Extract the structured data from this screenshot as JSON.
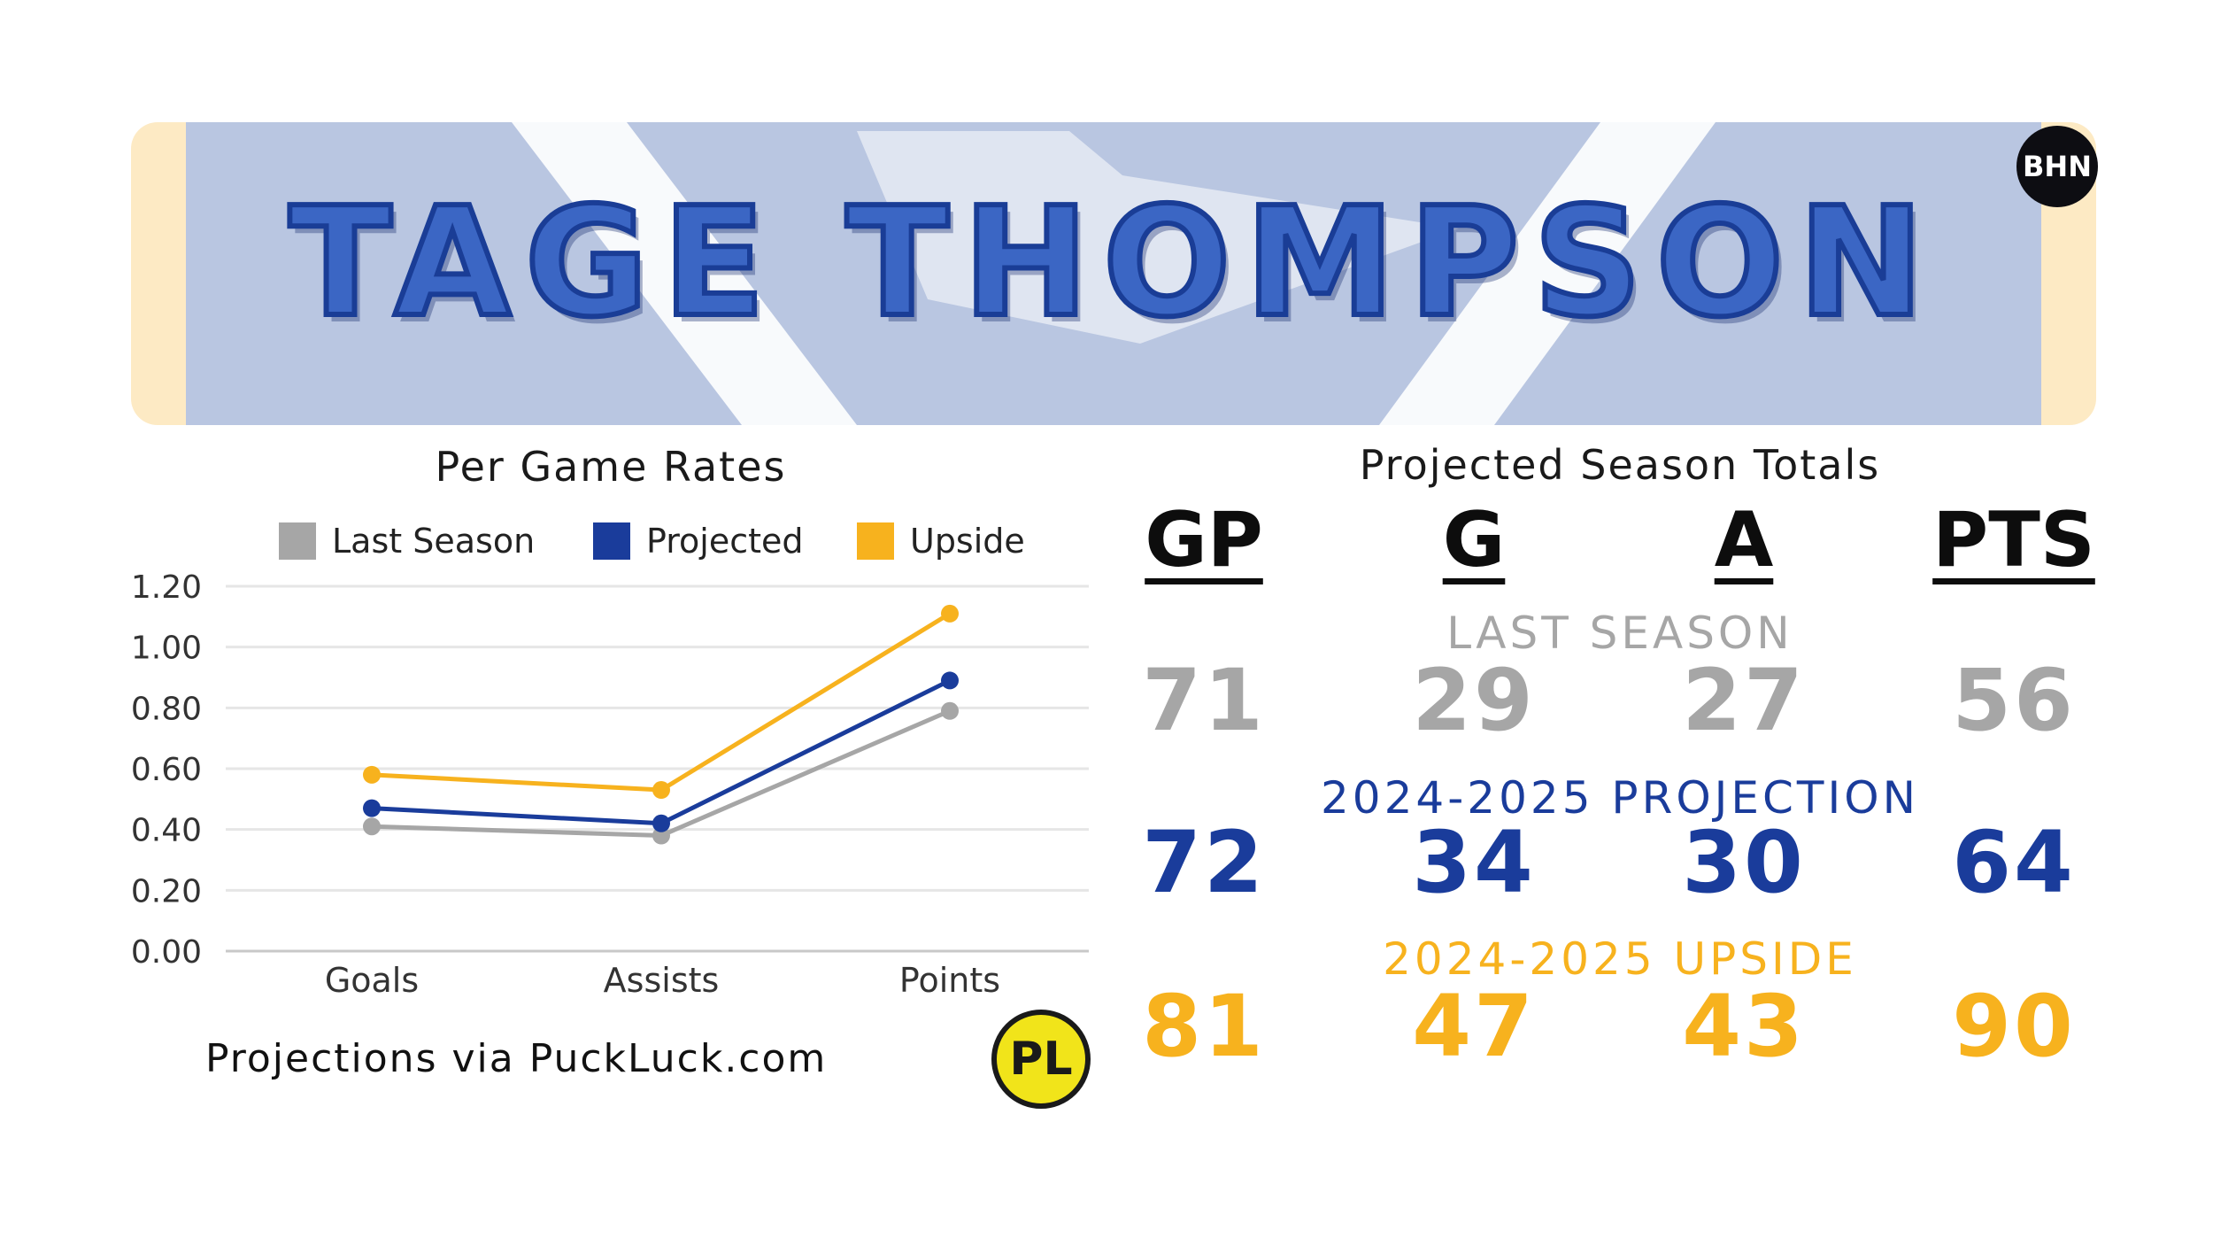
{
  "player": {
    "name": "TAGE THOMPSON"
  },
  "logos": {
    "top_right_text": "BHN",
    "puckluck_mark": "PL"
  },
  "colors": {
    "last_season": "#a6a6a6",
    "projected": "#1a3c9b",
    "upside": "#f7b21e",
    "banner_bg": "#b9c6e1",
    "banner_edge": "#fdeac4"
  },
  "chart_data": {
    "type": "line",
    "title": "Per Game Rates",
    "categories": [
      "Goals",
      "Assists",
      "Points"
    ],
    "series": [
      {
        "name": "Last Season",
        "values": [
          0.41,
          0.38,
          0.79
        ]
      },
      {
        "name": "Projected",
        "values": [
          0.47,
          0.42,
          0.89
        ]
      },
      {
        "name": "Upside",
        "values": [
          0.58,
          0.53,
          1.11
        ]
      }
    ],
    "ylim": [
      0,
      1.2
    ],
    "yticks": [
      "0.00",
      "0.20",
      "0.40",
      "0.60",
      "0.80",
      "1.00",
      "1.20"
    ],
    "grid": true,
    "legend": "top"
  },
  "credit": "Projections via PuckLuck.com",
  "totals": {
    "title": "Projected Season Totals",
    "columns": [
      "GP",
      "G",
      "A",
      "PTS"
    ],
    "rows": [
      {
        "label": "LAST SEASON",
        "values": [
          "71",
          "29",
          "27",
          "56"
        ]
      },
      {
        "label": "2024-2025 PROJECTION",
        "values": [
          "72",
          "34",
          "30",
          "64"
        ]
      },
      {
        "label": "2024-2025 UPSIDE",
        "values": [
          "81",
          "47",
          "43",
          "90"
        ]
      }
    ]
  }
}
